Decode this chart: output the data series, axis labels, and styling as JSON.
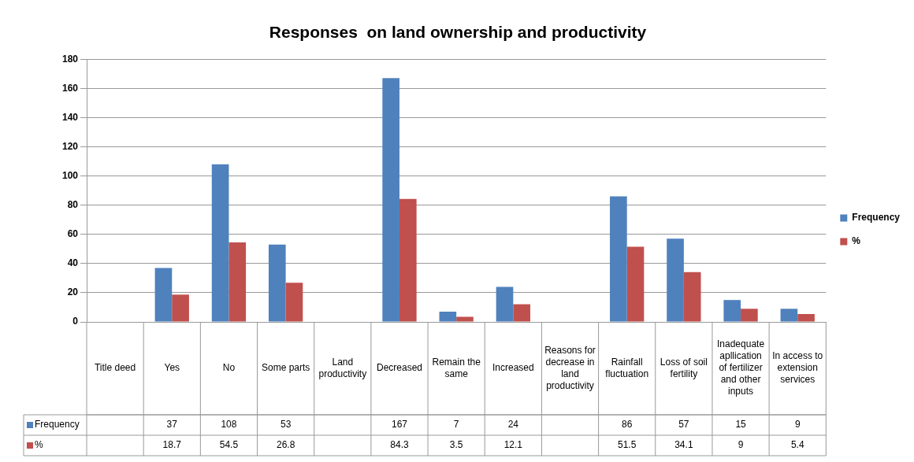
{
  "chart_data": {
    "type": "bar",
    "title": "Responses  on land ownership and productivity",
    "categories": [
      "Title deed",
      "Yes",
      "No",
      "Some parts",
      "Land productivity",
      "Decreased",
      "Remain the same",
      "Increased",
      "Reasons for decrease in land productivity",
      "Rainfall fluctuation",
      "Loss of soil fertility",
      "Inadequate apllication of fertilizer and other inputs",
      "In access to extension services"
    ],
    "series": [
      {
        "name": "Frequency",
        "color": "#4f81bd",
        "values": [
          null,
          37,
          108,
          53,
          null,
          167,
          7,
          24,
          null,
          86,
          57,
          15,
          9
        ]
      },
      {
        "name": "%",
        "color": "#c0504d",
        "values": [
          null,
          18.7,
          54.5,
          26.8,
          null,
          84.3,
          3.5,
          12.1,
          null,
          51.5,
          34.1,
          9,
          5.4
        ]
      }
    ],
    "ylim": [
      0,
      180
    ],
    "yticks": [
      0,
      20,
      40,
      60,
      80,
      100,
      120,
      140,
      160,
      180
    ],
    "grid": "y",
    "legend": "right",
    "data_labels": true
  }
}
